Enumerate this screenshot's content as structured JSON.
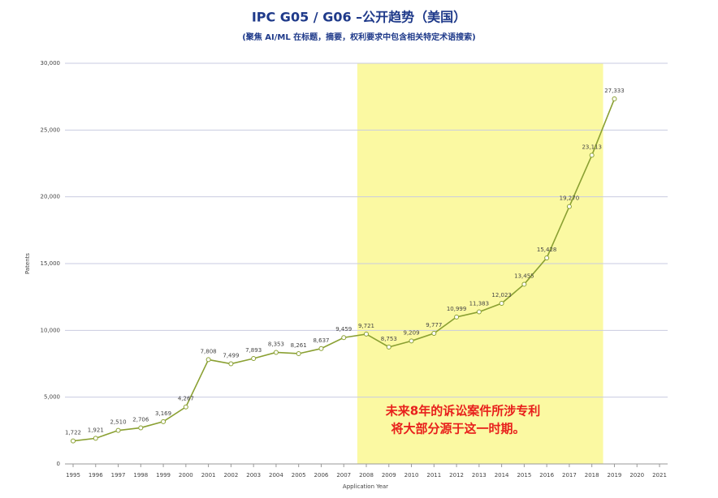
{
  "chart_data": {
    "type": "line",
    "title": "IPC G05 / G06 –公开趋势（美国）",
    "subtitle": "(聚焦 AI/ML 在标题，摘要，权利要求中包含相关特定术语搜索)",
    "x_label": "Application Year",
    "y_label": "Patents",
    "x": [
      1995,
      1996,
      1997,
      1998,
      1999,
      2000,
      2001,
      2002,
      2003,
      2004,
      2005,
      2006,
      2007,
      2008,
      2009,
      2010,
      2011,
      2012,
      2013,
      2014,
      2015,
      2016,
      2017,
      2018,
      2019
    ],
    "series": [
      {
        "name": "Patents",
        "color": "#8aa032",
        "values": [
          1722,
          1921,
          2510,
          2706,
          3169,
          4267,
          7808,
          7499,
          7893,
          8353,
          8261,
          8637,
          9459,
          9721,
          8753,
          9209,
          9777,
          10999,
          11383,
          12023,
          13455,
          15428,
          19270,
          23113,
          27333
        ],
        "value_labels": [
          "1,722",
          "1,921",
          "2,510",
          "2,706",
          "3,169",
          "4,267",
          "7,808",
          "7,499",
          "7,893",
          "8,353",
          "8,261",
          "8,637",
          "9,459",
          "9,721",
          "8,753",
          "9,209",
          "9,777",
          "10,999",
          "11,383",
          "12,023",
          "13,455",
          "15,428",
          "19,270",
          "23,113",
          "27,333"
        ]
      }
    ],
    "xlim": [
      1995,
      2021
    ],
    "xticks": [
      1995,
      1996,
      1997,
      1998,
      1999,
      2000,
      2001,
      2002,
      2003,
      2004,
      2005,
      2006,
      2007,
      2008,
      2009,
      2010,
      2011,
      2012,
      2013,
      2014,
      2015,
      2016,
      2017,
      2018,
      2019,
      2020,
      2021
    ],
    "ylim": [
      0,
      30000
    ],
    "yticks": [
      0,
      {
        "value": 5000,
        "label": "5,000"
      },
      {
        "value": 10000,
        "label": "10,000"
      },
      {
        "value": 15000,
        "label": "15,000"
      },
      {
        "value": 20000,
        "label": "20,000"
      },
      {
        "value": 25000,
        "label": "25,000"
      },
      {
        "value": 30000,
        "label": "30,000"
      }
    ],
    "grid": true,
    "highlight": {
      "range": [
        2007.6,
        2018.5
      ],
      "color": "#fbf9a2"
    },
    "annotation": {
      "lines": [
        "未来8年的诉讼案件所涉专利",
        "将大部分源于这一时期。"
      ],
      "color": "#e8201c"
    }
  }
}
